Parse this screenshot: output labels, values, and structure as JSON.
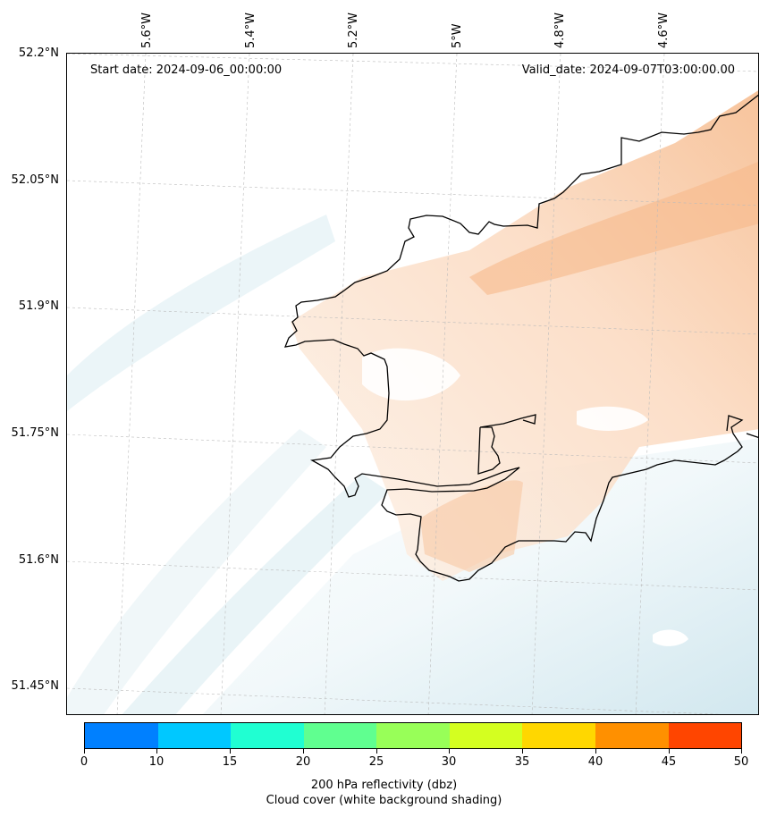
{
  "map": {
    "start_label": "Start date: 2024-09-06_00:00:00",
    "valid_label": "Valid_date: 2024-09-07T03:00:00.00",
    "lat_labels": [
      "52.2°N",
      "52.05°N",
      "51.9°N",
      "51.75°N",
      "51.6°N",
      "51.45°N"
    ],
    "lon_labels": [
      "5.6°W",
      "5.4°W",
      "5.2°W",
      "5°W",
      "4.8°W",
      "4.6°W"
    ],
    "land_shading_color": "#f6b98a",
    "cloud_shading_color": "#cfe6ee",
    "coastline_color": "#000000"
  },
  "colorbar": {
    "colors": [
      "#0080ff",
      "#00c8ff",
      "#20ffd2",
      "#60ff90",
      "#98ff58",
      "#d4ff20",
      "#ffd700",
      "#ff9000",
      "#ff4500"
    ],
    "ticks": [
      "0",
      "10",
      "15",
      "20",
      "25",
      "30",
      "35",
      "40",
      "45",
      "50"
    ],
    "label_line1": "200 hPa reflectivity (dbz)",
    "label_line2": "Cloud cover (white background shading)"
  }
}
